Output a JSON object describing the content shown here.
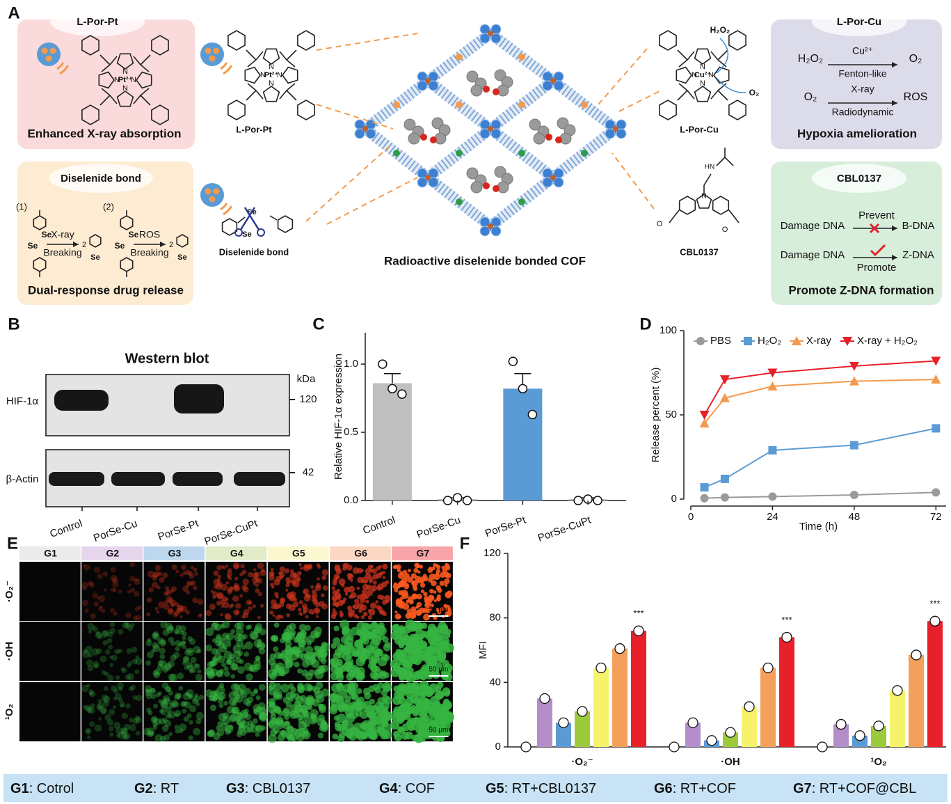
{
  "panel_labels": [
    "A",
    "B",
    "C",
    "D",
    "E",
    "F"
  ],
  "scheme": {
    "pt_box": {
      "title": "L-Por-Pt",
      "caption": "Enhanced X-ray absorption"
    },
    "se_box": {
      "title": "Diselenide bond",
      "steps": [
        "(1)",
        "(2)"
      ],
      "triggers": [
        "X-ray",
        "ROS"
      ],
      "action": "Breaking",
      "caption": "Dual-response drug release"
    },
    "atoms": {
      "N": "N",
      "Pt": "Pt²⁺",
      "Cu": "Cu²⁺",
      "Se": "Se",
      "HN": "HN",
      "O": "O",
      "coef": "2"
    },
    "molecules": {
      "pt": "L-Por-Pt",
      "se": "Diselenide bond",
      "cu": "L-Por-Cu",
      "cbl": "CBL0137",
      "h2o2": "H₂O₂",
      "o2": "O₂"
    },
    "cof_caption": "Radioactive diselenide bonded COF",
    "cu_box": {
      "title": "L-Por-Cu",
      "r1": [
        "H₂O₂",
        "Cu²⁺",
        "Fenton-like",
        "O₂"
      ],
      "r2": [
        "O₂",
        "X-ray",
        "Radiodynamic",
        "ROS"
      ],
      "caption": "Hypoxia amelioration"
    },
    "cbl_box": {
      "title": "CBL0137",
      "r1": [
        "Damage DNA",
        "Prevent",
        "B-DNA"
      ],
      "r2": [
        "Damage DNA",
        "Promote",
        "Z-DNA"
      ],
      "caption": "Promote Z-DNA formation"
    }
  },
  "blot": {
    "title": "Western blot",
    "unit": "kDa",
    "rows": [
      "HIF-1α",
      "β-Actin"
    ],
    "markers": [
      120,
      42
    ],
    "lanes": [
      "Control",
      "PorSe-Cu",
      "PorSe-Pt",
      "PorSe-CuPt"
    ]
  },
  "imaging": {
    "rows": [
      "·O₂⁻",
      "·OH",
      "¹O₂"
    ],
    "header_colors": [
      "#ebebeb",
      "#e6d5ec",
      "#bcd7ee",
      "#e2ecc8",
      "#fbf7cf",
      "#fbd8c4",
      "#f7a5a8"
    ],
    "scale_bar": "50 μm"
  },
  "chart_data": [
    {
      "type": "bar",
      "ylabel": "Relative HIF-1α expression",
      "categories": [
        "Control",
        "PorSe-Cu",
        "PorSe-Pt",
        "PorSe-CuPt"
      ],
      "values": [
        0.86,
        0.01,
        0.82,
        0.01
      ],
      "errors": [
        0.07,
        0.01,
        0.11,
        0.01
      ],
      "points": [
        [
          1.0,
          0.82,
          0.78
        ],
        [
          0.0,
          0.02,
          0.0
        ],
        [
          1.02,
          0.82,
          0.63
        ],
        [
          0.0,
          0.01,
          0.0
        ]
      ],
      "colors": [
        "#bfbfbf",
        "#bfbfbf",
        "#5b9bd5",
        "#bfbfbf"
      ],
      "ylim": [
        0,
        1.23
      ],
      "yticks": [
        {
          "value": 0,
          "label": "0.0"
        },
        {
          "value": 0.5,
          "label": "0.5"
        },
        {
          "value": 1,
          "label": "1.0"
        }
      ]
    },
    {
      "type": "line",
      "xlabel": "Time (h)",
      "ylabel": "Release percent (%)",
      "x": [
        4,
        10,
        24,
        48,
        72
      ],
      "series": [
        {
          "name": "PBS",
          "color": "#9a9a9a",
          "marker": "circle",
          "values": [
            0.5,
            1,
            1.5,
            2.5,
            4
          ]
        },
        {
          "name": "H₂O₂",
          "color": "#5b9bd5",
          "marker": "square",
          "values": [
            7,
            12,
            29,
            32,
            42
          ]
        },
        {
          "name": "X-ray",
          "color": "#f39a4e",
          "marker": "triangle-up",
          "values": [
            45,
            60,
            67,
            70,
            71
          ]
        },
        {
          "name": "X-ray + H₂O₂",
          "color": "#e8202a",
          "marker": "triangle-down",
          "values": [
            50,
            71,
            75,
            79,
            82
          ]
        }
      ],
      "xlim": [
        0,
        75
      ],
      "ylim": [
        0,
        100
      ],
      "xticks": [
        0,
        24,
        48,
        72
      ],
      "yticks": [
        0,
        50,
        100
      ]
    },
    {
      "type": "grouped-bar",
      "ylabel": "MFI",
      "categories": [
        "·O₂⁻",
        "·OH",
        "¹O₂"
      ],
      "series": [
        {
          "name": "G1",
          "description": ": Cotrol",
          "color": "#ffffff",
          "values": [
            0,
            0,
            0
          ]
        },
        {
          "name": "G2",
          "description": ": RT",
          "color": "#b48ec9",
          "values": [
            30,
            15,
            14
          ]
        },
        {
          "name": "G3",
          "description": ": CBL0137",
          "color": "#5b9bd5",
          "values": [
            15,
            4,
            7
          ]
        },
        {
          "name": "G4",
          "description": ": COF",
          "color": "#9bcb3c",
          "values": [
            22,
            9,
            13
          ]
        },
        {
          "name": "G5",
          "description": ": RT+CBL0137",
          "color": "#f6f36b",
          "values": [
            49,
            25,
            35
          ]
        },
        {
          "name": "G6",
          "description": ": RT+COF",
          "color": "#f4a05a",
          "values": [
            61,
            49,
            57
          ]
        },
        {
          "name": "G7",
          "description": ": RT+COF@CBL",
          "color": "#e8202a",
          "values": [
            72,
            68,
            78
          ]
        }
      ],
      "annotations": [
        "***",
        "***",
        "***"
      ],
      "ylim": [
        0,
        120
      ],
      "yticks": [
        0,
        40,
        80,
        120
      ]
    }
  ]
}
